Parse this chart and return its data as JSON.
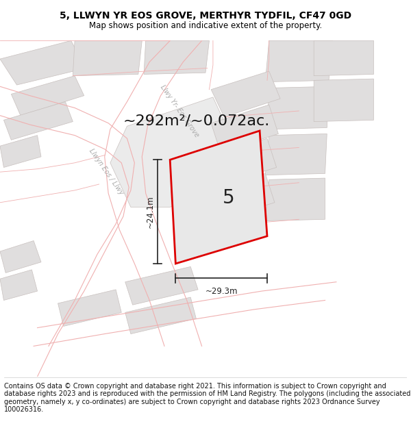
{
  "title": "5, LLWYN YR EOS GROVE, MERTHYR TYDFIL, CF47 0GD",
  "subtitle": "Map shows position and indicative extent of the property.",
  "area_text": "~292m²/~0.072ac.",
  "plot_number": "5",
  "dim_width": "~29.3m",
  "dim_height": "~24.1m",
  "footer": "Contains OS data © Crown copyright and database right 2021. This information is subject to Crown copyright and database rights 2023 and is reproduced with the permission of HM Land Registry. The polygons (including the associated geometry, namely x, y co-ordinates) are subject to Crown copyright and database rights 2023 Ordnance Survey 100026316.",
  "map_bg": "#ffffff",
  "plot_fill": "#e8e8e8",
  "plot_edge": "#dd0000",
  "road_line_color": "#f0b0b0",
  "building_fill": "#e0dede",
  "building_edge": "#c8c0be",
  "road_area_fill": "#f8f0f0",
  "dim_line_color": "#222222",
  "title_fontsize": 10,
  "subtitle_fontsize": 8.5,
  "area_fontsize": 16,
  "plot_num_fontsize": 20,
  "footer_fontsize": 7,
  "dim_fontsize": 8.5,
  "road_label_fontsize": 7,
  "road_label_color": "#aaaaaa"
}
